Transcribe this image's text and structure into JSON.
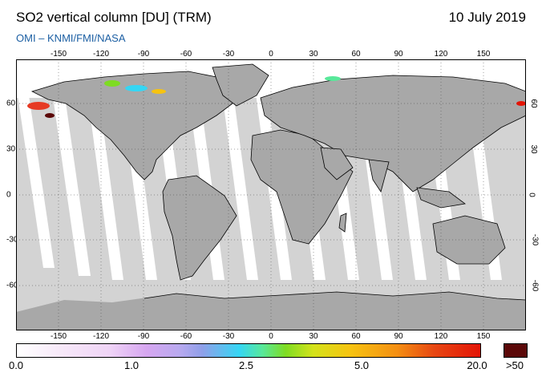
{
  "header": {
    "title": "SO2 vertical column [DU] (TRM)",
    "date": "10 July 2019",
    "credit": "OMI  –  KNMI/FMI/NASA"
  },
  "map": {
    "projection": "equirectangular",
    "lon_ticks": [
      "-150",
      "-120",
      "-90",
      "-60",
      "-30",
      "0",
      "30",
      "60",
      "90",
      "120",
      "150"
    ],
    "lat_ticks": [
      "60",
      "30",
      "0",
      "-30",
      "-60"
    ],
    "colors": {
      "ocean_no_data": "#d3d3d3",
      "land_no_data": "#a8a8a8",
      "coastline": "#000000",
      "high_so2": "#d9301c"
    }
  },
  "colorbar": {
    "labels": [
      "0.0",
      "1.0",
      "2.5",
      "5.0",
      "20.0"
    ],
    "over_label": ">50",
    "over_color": "#5b0808"
  }
}
